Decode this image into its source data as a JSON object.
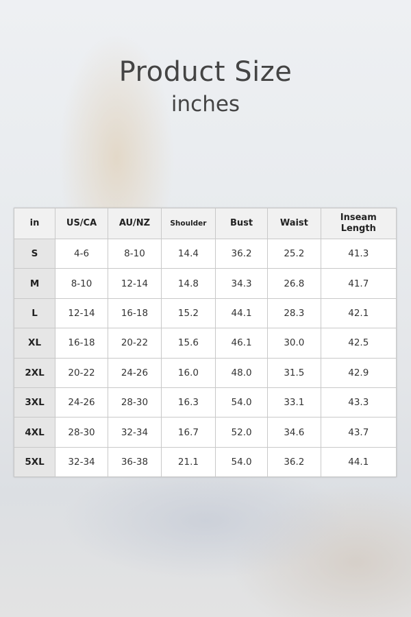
{
  "title": "Product Size",
  "subtitle": "inches",
  "table": {
    "headers": [
      "in",
      "US/CA",
      "AU/NZ",
      "Shoulder",
      "Bust",
      "Waist",
      "Inseam Length"
    ],
    "rows": [
      [
        "S",
        "4-6",
        "8-10",
        "14.4",
        "36.2",
        "25.2",
        "41.3"
      ],
      [
        "M",
        "8-10",
        "12-14",
        "14.8",
        "34.3",
        "26.8",
        "41.7"
      ],
      [
        "L",
        "12-14",
        "16-18",
        "15.2",
        "44.1",
        "28.3",
        "42.1"
      ],
      [
        "XL",
        "16-18",
        "20-22",
        "15.6",
        "46.1",
        "30.0",
        "42.5"
      ],
      [
        "2XL",
        "20-22",
        "24-26",
        "16.0",
        "48.0",
        "31.5",
        "42.9"
      ],
      [
        "3XL",
        "24-26",
        "28-30",
        "16.3",
        "54.0",
        "33.1",
        "43.3"
      ],
      [
        "4XL",
        "28-30",
        "32-34",
        "16.7",
        "52.0",
        "34.6",
        "43.7"
      ],
      [
        "5XL",
        "32-34",
        "36-38",
        "21.1",
        "54.0",
        "36.2",
        "44.1"
      ]
    ]
  }
}
